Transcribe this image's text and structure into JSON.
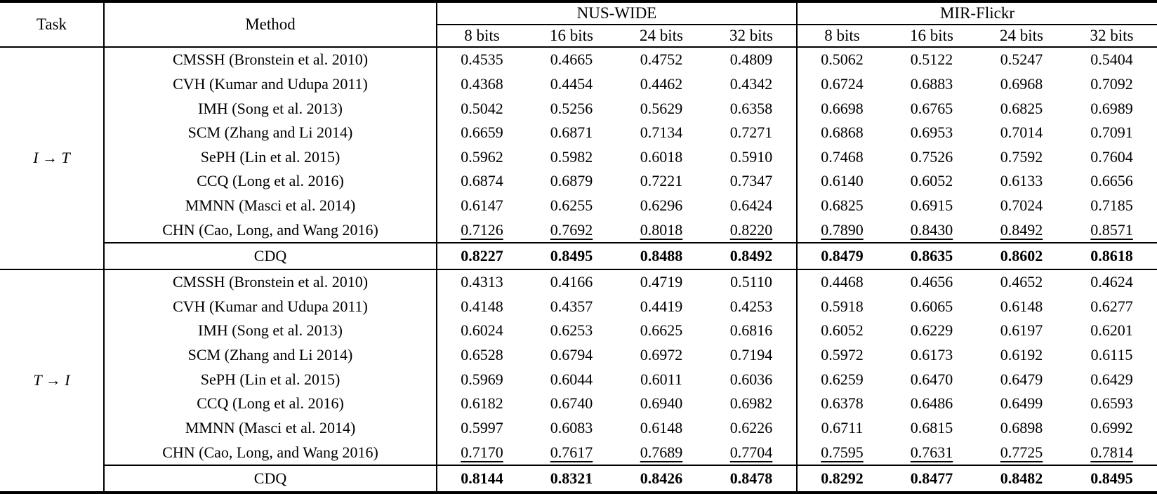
{
  "colors": {
    "text": "#000000",
    "background": "#ffffff",
    "rule": "#000000"
  },
  "table": {
    "header": {
      "task": "Task",
      "method": "Method",
      "bit_labels": [
        "8 bits",
        "16 bits",
        "24 bits",
        "32 bits"
      ]
    },
    "col_groups": [
      {
        "label": "NUS-WIDE"
      },
      {
        "label": "MIR-Flickr"
      }
    ],
    "sections": [
      {
        "task": "I → T",
        "rows": [
          {
            "method": "CMSSH (Bronstein et al. 2010)",
            "style": "normal",
            "nus": [
              "0.4535",
              "0.4665",
              "0.4752",
              "0.4809"
            ],
            "mir": [
              "0.5062",
              "0.5122",
              "0.5247",
              "0.5404"
            ]
          },
          {
            "method": "CVH (Kumar and Udupa 2011)",
            "style": "normal",
            "nus": [
              "0.4368",
              "0.4454",
              "0.4462",
              "0.4342"
            ],
            "mir": [
              "0.6724",
              "0.6883",
              "0.6968",
              "0.7092"
            ]
          },
          {
            "method": "IMH (Song et al. 2013)",
            "style": "normal",
            "nus": [
              "0.5042",
              "0.5256",
              "0.5629",
              "0.6358"
            ],
            "mir": [
              "0.6698",
              "0.6765",
              "0.6825",
              "0.6989"
            ]
          },
          {
            "method": "SCM (Zhang and Li 2014)",
            "style": "normal",
            "nus": [
              "0.6659",
              "0.6871",
              "0.7134",
              "0.7271"
            ],
            "mir": [
              "0.6868",
              "0.6953",
              "0.7014",
              "0.7091"
            ]
          },
          {
            "method": "SePH (Lin et al. 2015)",
            "style": "normal",
            "nus": [
              "0.5962",
              "0.5982",
              "0.6018",
              "0.5910"
            ],
            "mir": [
              "0.7468",
              "0.7526",
              "0.7592",
              "0.7604"
            ]
          },
          {
            "method": "CCQ (Long et al. 2016)",
            "style": "normal",
            "nus": [
              "0.6874",
              "0.6879",
              "0.7221",
              "0.7347"
            ],
            "mir": [
              "0.6140",
              "0.6052",
              "0.6133",
              "0.6656"
            ]
          },
          {
            "method": "MMNN (Masci et al. 2014)",
            "style": "normal",
            "nus": [
              "0.6147",
              "0.6255",
              "0.6296",
              "0.6424"
            ],
            "mir": [
              "0.6825",
              "0.6915",
              "0.7024",
              "0.7185"
            ]
          },
          {
            "method": "CHN (Cao, Long, and Wang 2016)",
            "style": "underline",
            "nus": [
              "0.7126",
              "0.7692",
              "0.8018",
              "0.8220"
            ],
            "mir": [
              "0.7890",
              "0.8430",
              "0.8492",
              "0.8571"
            ]
          },
          {
            "method": "CDQ",
            "style": "bold",
            "nus": [
              "0.8227",
              "0.8495",
              "0.8488",
              "0.8492"
            ],
            "mir": [
              "0.8479",
              "0.8635",
              "0.8602",
              "0.8618"
            ]
          }
        ]
      },
      {
        "task": "T → I",
        "rows": [
          {
            "method": "CMSSH (Bronstein et al. 2010)",
            "style": "normal",
            "nus": [
              "0.4313",
              "0.4166",
              "0.4719",
              "0.5110"
            ],
            "mir": [
              "0.4468",
              "0.4656",
              "0.4652",
              "0.4624"
            ]
          },
          {
            "method": "CVH (Kumar and Udupa 2011)",
            "style": "normal",
            "nus": [
              "0.4148",
              "0.4357",
              "0.4419",
              "0.4253"
            ],
            "mir": [
              "0.5918",
              "0.6065",
              "0.6148",
              "0.6277"
            ]
          },
          {
            "method": "IMH (Song et al. 2013)",
            "style": "normal",
            "nus": [
              "0.6024",
              "0.6253",
              "0.6625",
              "0.6816"
            ],
            "mir": [
              "0.6052",
              "0.6229",
              "0.6197",
              "0.6201"
            ]
          },
          {
            "method": "SCM (Zhang and Li 2014)",
            "style": "normal",
            "nus": [
              "0.6528",
              "0.6794",
              "0.6972",
              "0.7194"
            ],
            "mir": [
              "0.5972",
              "0.6173",
              "0.6192",
              "0.6115"
            ]
          },
          {
            "method": "SePH (Lin et al. 2015)",
            "style": "normal",
            "nus": [
              "0.5969",
              "0.6044",
              "0.6011",
              "0.6036"
            ],
            "mir": [
              "0.6259",
              "0.6470",
              "0.6479",
              "0.6429"
            ]
          },
          {
            "method": "CCQ (Long et al. 2016)",
            "style": "normal",
            "nus": [
              "0.6182",
              "0.6740",
              "0.6940",
              "0.6982"
            ],
            "mir": [
              "0.6378",
              "0.6486",
              "0.6499",
              "0.6593"
            ]
          },
          {
            "method": "MMNN (Masci et al. 2014)",
            "style": "normal",
            "nus": [
              "0.5997",
              "0.6083",
              "0.6148",
              "0.6226"
            ],
            "mir": [
              "0.6711",
              "0.6815",
              "0.6898",
              "0.6992"
            ]
          },
          {
            "method": "CHN (Cao, Long, and Wang 2016)",
            "style": "underline",
            "nus": [
              "0.7170",
              "0.7617",
              "0.7689",
              "0.7704"
            ],
            "mir": [
              "0.7595",
              "0.7631",
              "0.7725",
              "0.7814"
            ]
          },
          {
            "method": "CDQ",
            "style": "bold",
            "nus": [
              "0.8144",
              "0.8321",
              "0.8426",
              "0.8478"
            ],
            "mir": [
              "0.8292",
              "0.8477",
              "0.8482",
              "0.8495"
            ]
          }
        ]
      }
    ]
  }
}
